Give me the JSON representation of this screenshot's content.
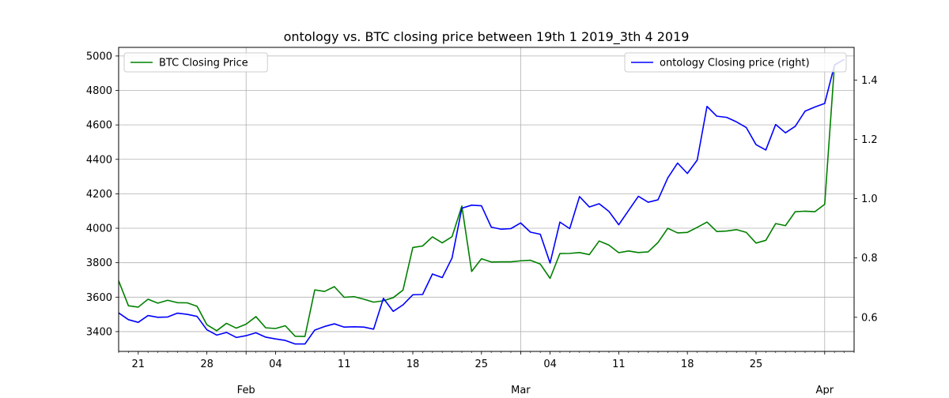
{
  "chart_data": {
    "type": "line",
    "title": "ontology vs. BTC closing price between 19th 1 2019_3th 4 2019",
    "xlabel": "",
    "x_range": [
      "2019-01-19",
      "2019-04-04"
    ],
    "x_tick_labels": [
      {
        "date": "2019-01-21",
        "label": "21"
      },
      {
        "date": "2019-01-28",
        "label": "28"
      },
      {
        "date": "2019-02-04",
        "label": "04"
      },
      {
        "date": "2019-02-11",
        "label": "11"
      },
      {
        "date": "2019-02-18",
        "label": "18"
      },
      {
        "date": "2019-02-25",
        "label": "25"
      },
      {
        "date": "2019-03-04",
        "label": "04"
      },
      {
        "date": "2019-03-11",
        "label": "11"
      },
      {
        "date": "2019-03-18",
        "label": "18"
      },
      {
        "date": "2019-03-25",
        "label": "25"
      }
    ],
    "month_labels": [
      {
        "date": "2019-02-01",
        "label": "Feb"
      },
      {
        "date": "2019-03-01",
        "label": "Mar"
      },
      {
        "date": "2019-04-01",
        "label": "Apr"
      }
    ],
    "grid": true,
    "y_left": {
      "label": "",
      "ylim": [
        3285,
        5050
      ],
      "ticks": [
        3400,
        3600,
        3800,
        4000,
        4200,
        4400,
        4600,
        4800,
        5000
      ]
    },
    "y_right": {
      "label": "",
      "ylim": [
        0.485,
        1.51
      ],
      "ticks": [
        0.6,
        0.8,
        1.0,
        1.2,
        1.4
      ]
    },
    "series": [
      {
        "name": "BTC Closing Price",
        "axis": "left",
        "color": "#008000",
        "legend_position": "upper left",
        "start_date": "2019-01-19",
        "values": [
          3695,
          3550,
          3542,
          3588,
          3565,
          3582,
          3568,
          3567,
          3547,
          3440,
          3405,
          3448,
          3420,
          3443,
          3487,
          3422,
          3418,
          3434,
          3373,
          3372,
          3642,
          3633,
          3661,
          3599,
          3603,
          3588,
          3571,
          3579,
          3597,
          3641,
          3888,
          3897,
          3950,
          3915,
          3951,
          4129,
          3749,
          3823,
          3804,
          3805,
          3805,
          3811,
          3814,
          3792,
          3709,
          3853,
          3854,
          3859,
          3847,
          3926,
          3902,
          3858,
          3868,
          3859,
          3863,
          3917,
          4000,
          3973,
          3976,
          4005,
          4036,
          3981,
          3984,
          3992,
          3976,
          3914,
          3930,
          4027,
          4015,
          4096,
          4099,
          4096,
          4139,
          4950,
          4980
        ]
      },
      {
        "name": "ontology Closing price (right)",
        "axis": "right",
        "color": "#0000ff",
        "legend_position": "upper right",
        "start_date": "2019-01-19",
        "values": [
          0.615,
          0.592,
          0.583,
          0.606,
          0.6,
          0.601,
          0.614,
          0.61,
          0.603,
          0.558,
          0.54,
          0.549,
          0.532,
          0.538,
          0.548,
          0.533,
          0.527,
          0.522,
          0.51,
          0.51,
          0.557,
          0.569,
          0.578,
          0.567,
          0.568,
          0.567,
          0.56,
          0.664,
          0.62,
          0.642,
          0.676,
          0.677,
          0.746,
          0.734,
          0.8,
          0.968,
          0.978,
          0.976,
          0.904,
          0.897,
          0.899,
          0.918,
          0.887,
          0.88,
          0.783,
          0.921,
          0.899,
          1.007,
          0.972,
          0.983,
          0.957,
          0.912,
          0.96,
          1.008,
          0.988,
          0.996,
          1.07,
          1.12,
          1.085,
          1.13,
          1.311,
          1.278,
          1.274,
          1.259,
          1.24,
          1.182,
          1.164,
          1.25,
          1.222,
          1.244,
          1.295,
          1.309,
          1.321,
          1.45,
          1.47
        ]
      }
    ]
  }
}
